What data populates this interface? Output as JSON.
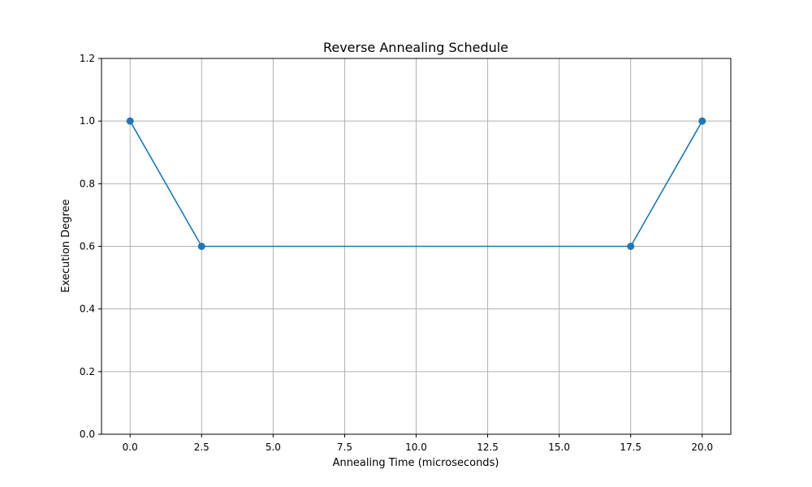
{
  "chart_data": {
    "type": "line",
    "title": "Reverse Annealing Schedule",
    "xlabel": "Annealing Time (microseconds)",
    "ylabel": "Execution Degree",
    "xlim": [
      -1.0,
      21.0
    ],
    "ylim": [
      0.0,
      1.2
    ],
    "xticks": [
      0.0,
      2.5,
      5.0,
      7.5,
      10.0,
      12.5,
      15.0,
      17.5,
      20.0
    ],
    "xtick_labels": [
      "0.0",
      "2.5",
      "5.0",
      "7.5",
      "10.0",
      "12.5",
      "15.0",
      "17.5",
      "20.0"
    ],
    "yticks": [
      0.0,
      0.2,
      0.4,
      0.6,
      0.8,
      1.0,
      1.2
    ],
    "ytick_labels": [
      "0.0",
      "0.2",
      "0.4",
      "0.6",
      "0.8",
      "1.0",
      "1.2"
    ],
    "grid": true,
    "markers": true,
    "series": [
      {
        "x": [
          0.0,
          2.5,
          17.5,
          20.0
        ],
        "y": [
          1.0,
          0.6,
          0.6,
          1.0
        ],
        "color": "#1f77b4"
      }
    ]
  }
}
